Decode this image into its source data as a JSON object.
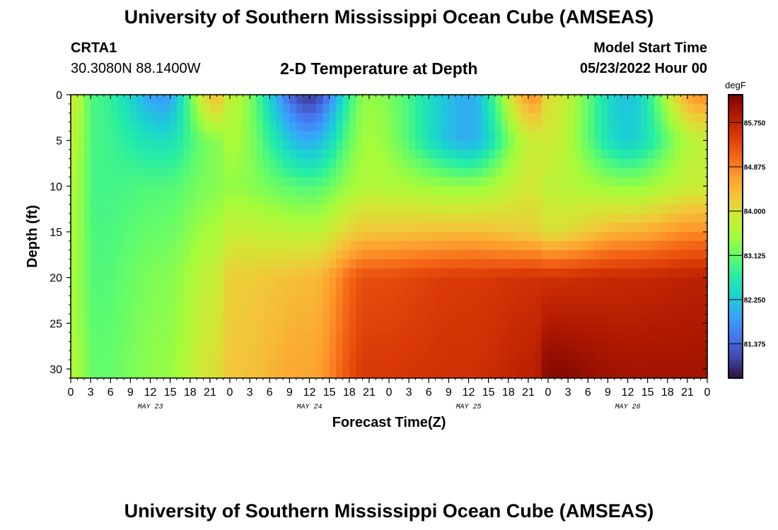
{
  "page": {
    "title": "University of Southern Mississippi Ocean Cube (AMSEAS)",
    "title_repeat": "University of Southern Mississippi Ocean Cube (AMSEAS)",
    "station": "CRTA1",
    "location": "30.3080N  88.1400W",
    "subtitle": "2-D Temperature at Depth",
    "model_start_label": "Model Start Time",
    "model_start_value": "05/23/2022 Hour 00"
  },
  "chart_data": {
    "type": "heatmap",
    "title": "2-D Temperature at Depth",
    "xlabel": "Forecast Time(Z)",
    "ylabel": "Depth (ft)",
    "colorbar_unit": "degF",
    "colorbar_ticks": [
      85.75,
      84.875,
      84.0,
      83.125,
      82.25,
      81.375
    ],
    "colorbar_tick_labels": [
      "85.750",
      "84.875",
      "84.000",
      "83.125",
      "82.250",
      "81.375"
    ],
    "color_range": [
      80.7,
      86.3
    ],
    "ylim": [
      0,
      31
    ],
    "yticks": [
      0,
      5,
      10,
      15,
      20,
      25,
      30
    ],
    "xlim_hours": [
      0,
      96
    ],
    "xticks_hours": [
      0,
      3,
      6,
      9,
      12,
      15,
      18,
      21,
      24,
      27,
      30,
      33,
      36,
      39,
      42,
      45,
      48,
      51,
      54,
      57,
      60,
      63,
      66,
      69,
      72,
      75,
      78,
      81,
      84,
      87,
      90,
      93,
      96
    ],
    "xtick_labels": [
      "0",
      "3",
      "6",
      "9",
      "12",
      "15",
      "18",
      "21",
      "0",
      "3",
      "6",
      "9",
      "12",
      "15",
      "18",
      "21",
      "0",
      "3",
      "6",
      "9",
      "12",
      "15",
      "18",
      "21",
      "0",
      "3",
      "6",
      "9",
      "12",
      "15",
      "18",
      "21",
      "0"
    ],
    "date_labels": [
      {
        "hour": 12,
        "text": "MAY 23"
      },
      {
        "hour": 36,
        "text": "MAY 24"
      },
      {
        "hour": 60,
        "text": "MAY 25"
      },
      {
        "hour": 84,
        "text": "MAY 26"
      }
    ],
    "grid_hours": [
      0,
      1,
      2,
      3,
      4,
      5,
      6,
      7,
      8,
      9,
      10,
      11,
      12,
      13,
      14,
      15,
      16,
      17,
      18,
      19,
      20,
      21,
      22,
      23,
      24,
      25,
      26,
      27,
      28,
      29,
      30,
      31,
      32,
      33,
      34,
      35,
      36,
      37,
      38,
      39,
      40,
      41,
      42,
      43,
      44,
      45,
      46,
      47,
      48,
      49,
      50,
      51,
      52,
      53,
      54,
      55,
      56,
      57,
      58,
      59,
      60,
      61,
      62,
      63,
      64,
      65,
      66,
      67,
      68,
      69,
      70,
      71,
      72,
      73,
      74,
      75,
      76,
      77,
      78,
      79,
      80,
      81,
      82,
      83,
      84,
      85,
      86,
      87,
      88,
      89,
      90,
      91,
      92,
      93,
      94,
      95,
      96
    ],
    "grid_depths": [
      0,
      1,
      2,
      3,
      4,
      5,
      6,
      7,
      8,
      9,
      10,
      11,
      12,
      13,
      14,
      15,
      16,
      17,
      18,
      19,
      20,
      21,
      22,
      23,
      24,
      25,
      26,
      27,
      28,
      29,
      30,
      31
    ],
    "temperature_samples_degF": [
      {
        "hour": 0,
        "profile": {
          "0": 83.8,
          "10": 83.6,
          "20": 83.5,
          "30": 83.6
        }
      },
      {
        "hour": 4,
        "profile": {
          "0": 82.9,
          "10": 82.9,
          "20": 83.0,
          "30": 83.1
        }
      },
      {
        "hour": 14,
        "profile": {
          "0": 81.8,
          "5": 82.5,
          "10": 83.0,
          "20": 83.3,
          "30": 83.4
        }
      },
      {
        "hour": 22,
        "profile": {
          "0": 84.4,
          "5": 83.3,
          "10": 83.3,
          "20": 83.8,
          "30": 84.0
        }
      },
      {
        "hour": 24,
        "profile": {
          "0": 83.7,
          "10": 83.4,
          "20": 84.2,
          "30": 84.3
        }
      },
      {
        "hour": 36,
        "profile": {
          "0": 81.0,
          "5": 82.0,
          "10": 83.0,
          "15": 83.7,
          "20": 84.4,
          "30": 84.6
        }
      },
      {
        "hour": 45,
        "profile": {
          "0": 83.4,
          "10": 83.6,
          "15": 84.3,
          "20": 85.3,
          "30": 85.5
        }
      },
      {
        "hour": 60,
        "profile": {
          "0": 82.0,
          "5": 82.0,
          "10": 83.4,
          "15": 84.4,
          "20": 85.5,
          "30": 85.6
        }
      },
      {
        "hour": 70,
        "profile": {
          "0": 84.8,
          "5": 83.8,
          "10": 83.9,
          "15": 84.2,
          "20": 85.6,
          "30": 85.8
        }
      },
      {
        "hour": 72,
        "profile": {
          "0": 84.0,
          "10": 83.7,
          "15": 84.0,
          "20": 85.6,
          "30": 86.2
        }
      },
      {
        "hour": 84,
        "profile": {
          "0": 82.2,
          "5": 82.3,
          "10": 83.4,
          "15": 84.5,
          "20": 85.7,
          "30": 86.0
        }
      },
      {
        "hour": 95,
        "profile": {
          "0": 84.8,
          "5": 83.7,
          "10": 83.8,
          "15": 84.8,
          "20": 85.8,
          "30": 86.0
        }
      }
    ],
    "grid": "off"
  },
  "colors": {
    "scale": [
      "#30123b",
      "#4145ab",
      "#4675ed",
      "#39a2fc",
      "#1bcfd4",
      "#24eca6",
      "#61fc6c",
      "#a4fc3b",
      "#d1e834",
      "#f3c63a",
      "#fe9b2d",
      "#f36315",
      "#d93806",
      "#b11901",
      "#7a0402"
    ]
  }
}
